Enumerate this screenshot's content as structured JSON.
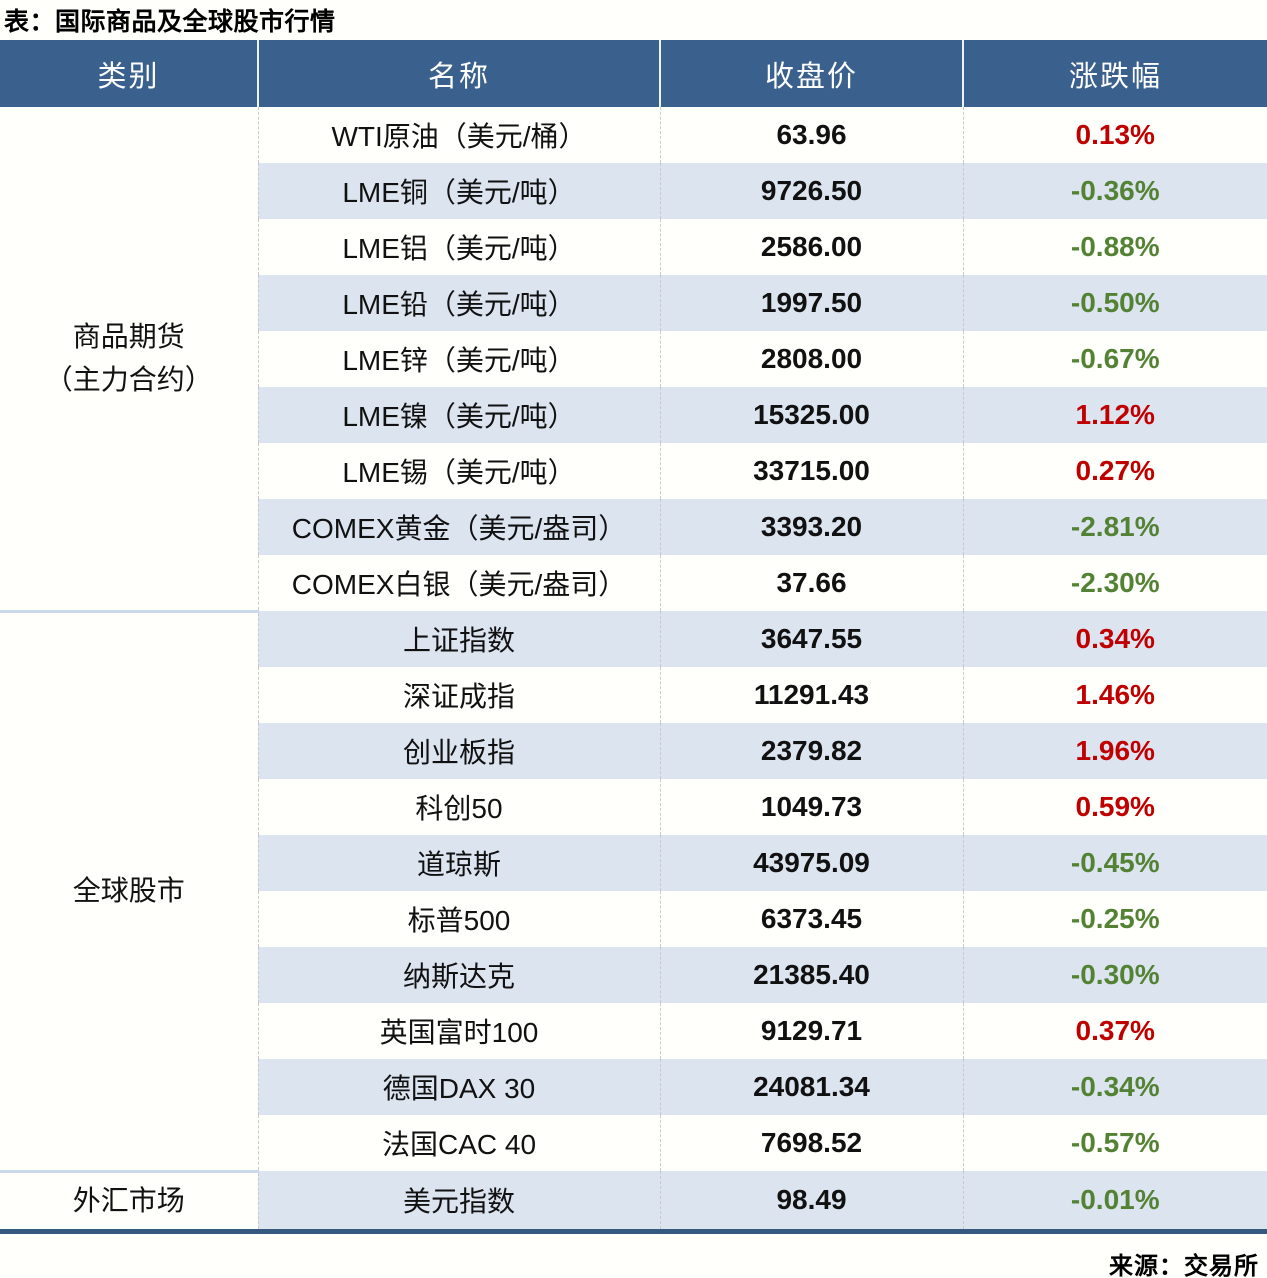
{
  "page": {
    "title": "表：国际商品及全球股市行情",
    "source": "来源：交易所"
  },
  "colors": {
    "header_bg": "#3a618d",
    "row_alt_bg": "#dce4f0",
    "row_bg": "#ffffff",
    "up_red": "#c00000",
    "down_green": "#548235",
    "bottom_border": "#35597f",
    "group_divider": "#cbd9ea"
  },
  "chart_data": {
    "type": "table",
    "title": "表：国际商品及全球股市行情",
    "columns": [
      "类别",
      "名称",
      "收盘价",
      "涨跌幅"
    ],
    "groups": [
      {
        "category": "商品期货\n（主力合约）",
        "rows": [
          {
            "name": "WTI原油（美元/桶）",
            "close": "63.96",
            "change": "0.13%",
            "direction": "up"
          },
          {
            "name": "LME铜（美元/吨）",
            "close": "9726.50",
            "change": "-0.36%",
            "direction": "down"
          },
          {
            "name": "LME铝（美元/吨）",
            "close": "2586.00",
            "change": "-0.88%",
            "direction": "down"
          },
          {
            "name": "LME铅（美元/吨）",
            "close": "1997.50",
            "change": "-0.50%",
            "direction": "down"
          },
          {
            "name": "LME锌（美元/吨）",
            "close": "2808.00",
            "change": "-0.67%",
            "direction": "down"
          },
          {
            "name": "LME镍（美元/吨）",
            "close": "15325.00",
            "change": "1.12%",
            "direction": "up"
          },
          {
            "name": "LME锡（美元/吨）",
            "close": "33715.00",
            "change": "0.27%",
            "direction": "up"
          },
          {
            "name": "COMEX黄金（美元/盎司）",
            "close": "3393.20",
            "change": "-2.81%",
            "direction": "down"
          },
          {
            "name": "COMEX白银（美元/盎司）",
            "close": "37.66",
            "change": "-2.30%",
            "direction": "down"
          }
        ]
      },
      {
        "category": "全球股市",
        "rows": [
          {
            "name": "上证指数",
            "close": "3647.55",
            "change": "0.34%",
            "direction": "up"
          },
          {
            "name": "深证成指",
            "close": "11291.43",
            "change": "1.46%",
            "direction": "up"
          },
          {
            "name": "创业板指",
            "close": "2379.82",
            "change": "1.96%",
            "direction": "up"
          },
          {
            "name": "科创50",
            "close": "1049.73",
            "change": "0.59%",
            "direction": "up"
          },
          {
            "name": "道琼斯",
            "close": "43975.09",
            "change": "-0.45%",
            "direction": "down"
          },
          {
            "name": "标普500",
            "close": "6373.45",
            "change": "-0.25%",
            "direction": "down"
          },
          {
            "name": "纳斯达克",
            "close": "21385.40",
            "change": "-0.30%",
            "direction": "down"
          },
          {
            "name": "英国富时100",
            "close": "9129.71",
            "change": "0.37%",
            "direction": "up"
          },
          {
            "name": "德国DAX 30",
            "close": "24081.34",
            "change": "-0.34%",
            "direction": "down"
          },
          {
            "name": "法国CAC 40",
            "close": "7698.52",
            "change": "-0.57%",
            "direction": "down"
          }
        ]
      },
      {
        "category": "外汇市场",
        "rows": [
          {
            "name": "美元指数",
            "close": "98.49",
            "change": "-0.01%",
            "direction": "down"
          }
        ]
      }
    ]
  }
}
